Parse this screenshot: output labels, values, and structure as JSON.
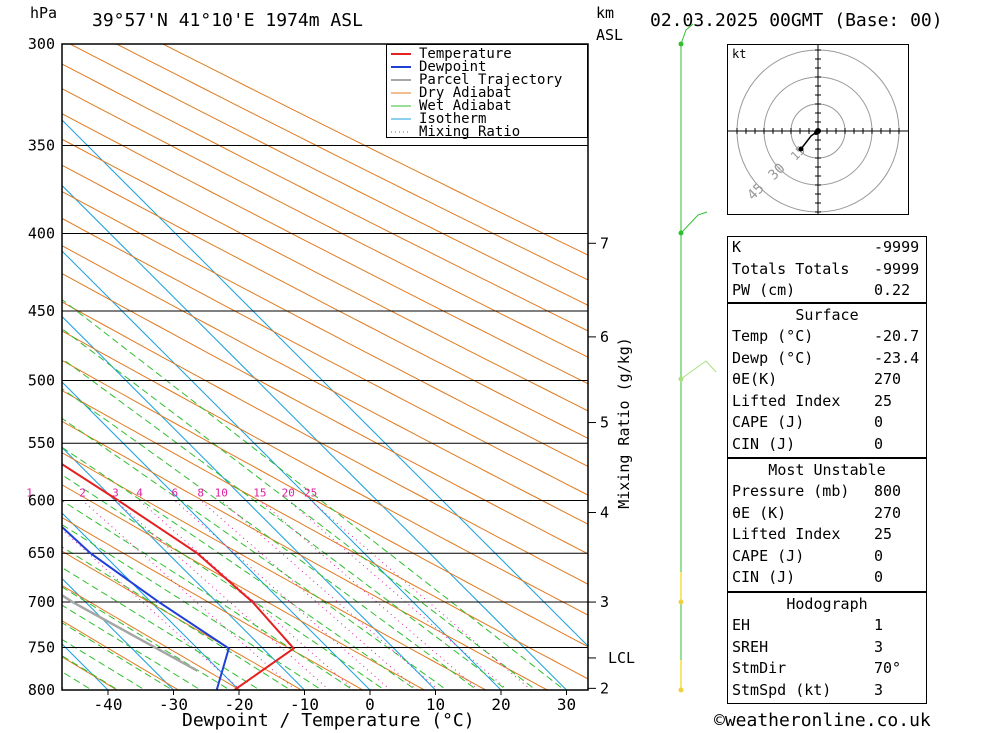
{
  "header": {
    "pressure_unit": "hPa",
    "location": "39°57'N  41°10'E  1974m  ASL",
    "height_unit_km": "km",
    "height_unit_asl": "ASL",
    "datetime": "02.03.2025  00GMT  (Base: 00)"
  },
  "chart_data": {
    "type": "line",
    "title": "39°57'N  41°10'E  1974m  ASL",
    "xlabel": "Dewpoint / Temperature (°C)",
    "ylabel": "hPa",
    "secondary_ylabel": "Mixing Ratio (g/kg)",
    "x_ticks": [
      -40,
      -30,
      -20,
      -10,
      0,
      10,
      20,
      30
    ],
    "pressure_levels": [
      300,
      350,
      400,
      450,
      500,
      550,
      600,
      650,
      700,
      750,
      800
    ],
    "km_ticks": [
      {
        "label": "7",
        "p": 406
      },
      {
        "label": "6",
        "p": 468
      },
      {
        "label": "5",
        "p": 533
      },
      {
        "label": "4",
        "p": 611
      },
      {
        "label": "3",
        "p": 700
      },
      {
        "label": "LCL",
        "p": 762
      },
      {
        "label": "2",
        "p": 798
      }
    ],
    "mixing_ratio_labels": [
      "1",
      "2",
      "3",
      "4",
      "6",
      "8",
      "10",
      "15",
      "20",
      "25"
    ],
    "legend": [
      "Temperature",
      "Dewpoint",
      "Parcel Trajectory",
      "Dry Adiabat",
      "Wet Adiabat",
      "Isotherm",
      "Mixing Ratio"
    ],
    "legend_position": "top-right",
    "colors": {
      "temperature": "#e52020",
      "dewpoint": "#1f3fd6",
      "parcel": "#a6a6a6",
      "dry_adiabat": "#e07a20",
      "wet_adiabat": "#2fbf2f",
      "isotherm": "#1aa0e0",
      "mixing_ratio": "#e020a0"
    },
    "series": [
      {
        "name": "Temperature",
        "points": [
          [
            -20.7,
            800
          ],
          [
            -5.3,
            751
          ],
          [
            -4.5,
            700
          ],
          [
            -5.5,
            650
          ],
          [
            -9.5,
            600
          ],
          [
            -14.3,
            550
          ],
          [
            -19.7,
            500
          ],
          [
            -25.7,
            450
          ],
          [
            -32.3,
            400
          ],
          [
            -38.8,
            350
          ],
          [
            -45.8,
            300
          ]
        ]
      },
      {
        "name": "Dewpoint",
        "points": [
          [
            -23.4,
            800
          ],
          [
            -15.2,
            751
          ],
          [
            -18.8,
            700
          ],
          [
            -21.8,
            650
          ],
          [
            -22.5,
            600
          ],
          [
            -25.8,
            550
          ],
          [
            -33.8,
            500
          ],
          [
            -36.4,
            450
          ],
          [
            -42.6,
            400
          ],
          [
            -49.7,
            350
          ],
          [
            -57.4,
            300
          ]
        ]
      },
      {
        "name": "Parcel Trajectory",
        "points": [
          [
            -23.4,
            777
          ],
          [
            -32.0,
            700
          ],
          [
            -40.1,
            600
          ],
          [
            -49.7,
            500
          ],
          [
            -61.2,
            400
          ],
          [
            -68.4,
            350
          ]
        ]
      }
    ]
  },
  "hodograph": {
    "unit": "kt",
    "ring_labels": [
      "15",
      "30",
      "45"
    ]
  },
  "indices": {
    "rows": [
      {
        "label": "K",
        "value": "-9999"
      },
      {
        "label": "Totals Totals",
        "value": "-9999"
      },
      {
        "label": "PW (cm)",
        "value": "0.22"
      }
    ]
  },
  "surface": {
    "title": "Surface",
    "rows": [
      {
        "label": "Temp (°C)",
        "value": "-20.7"
      },
      {
        "label": "Dewp (°C)",
        "value": "-23.4"
      },
      {
        "label": "θE(K)",
        "value": "270"
      },
      {
        "label": "Lifted Index",
        "value": "25"
      },
      {
        "label": "CAPE (J)",
        "value": "0"
      },
      {
        "label": "CIN (J)",
        "value": "0"
      }
    ]
  },
  "most_unstable": {
    "title": "Most Unstable",
    "rows": [
      {
        "label": "Pressure (mb)",
        "value": "800"
      },
      {
        "label": "θE (K)",
        "value": "270"
      },
      {
        "label": "Lifted Index",
        "value": "25"
      },
      {
        "label": "CAPE (J)",
        "value": "0"
      },
      {
        "label": "CIN (J)",
        "value": "0"
      }
    ]
  },
  "hodograph_table": {
    "title": "Hodograph",
    "rows": [
      {
        "label": "EH",
        "value": "1"
      },
      {
        "label": "SREH",
        "value": "3"
      },
      {
        "label": "StmDir",
        "value": "70°"
      },
      {
        "label": "StmSpd (kt)",
        "value": "3"
      }
    ]
  },
  "footer": {
    "copyright": "©weatheronline.co.uk"
  }
}
